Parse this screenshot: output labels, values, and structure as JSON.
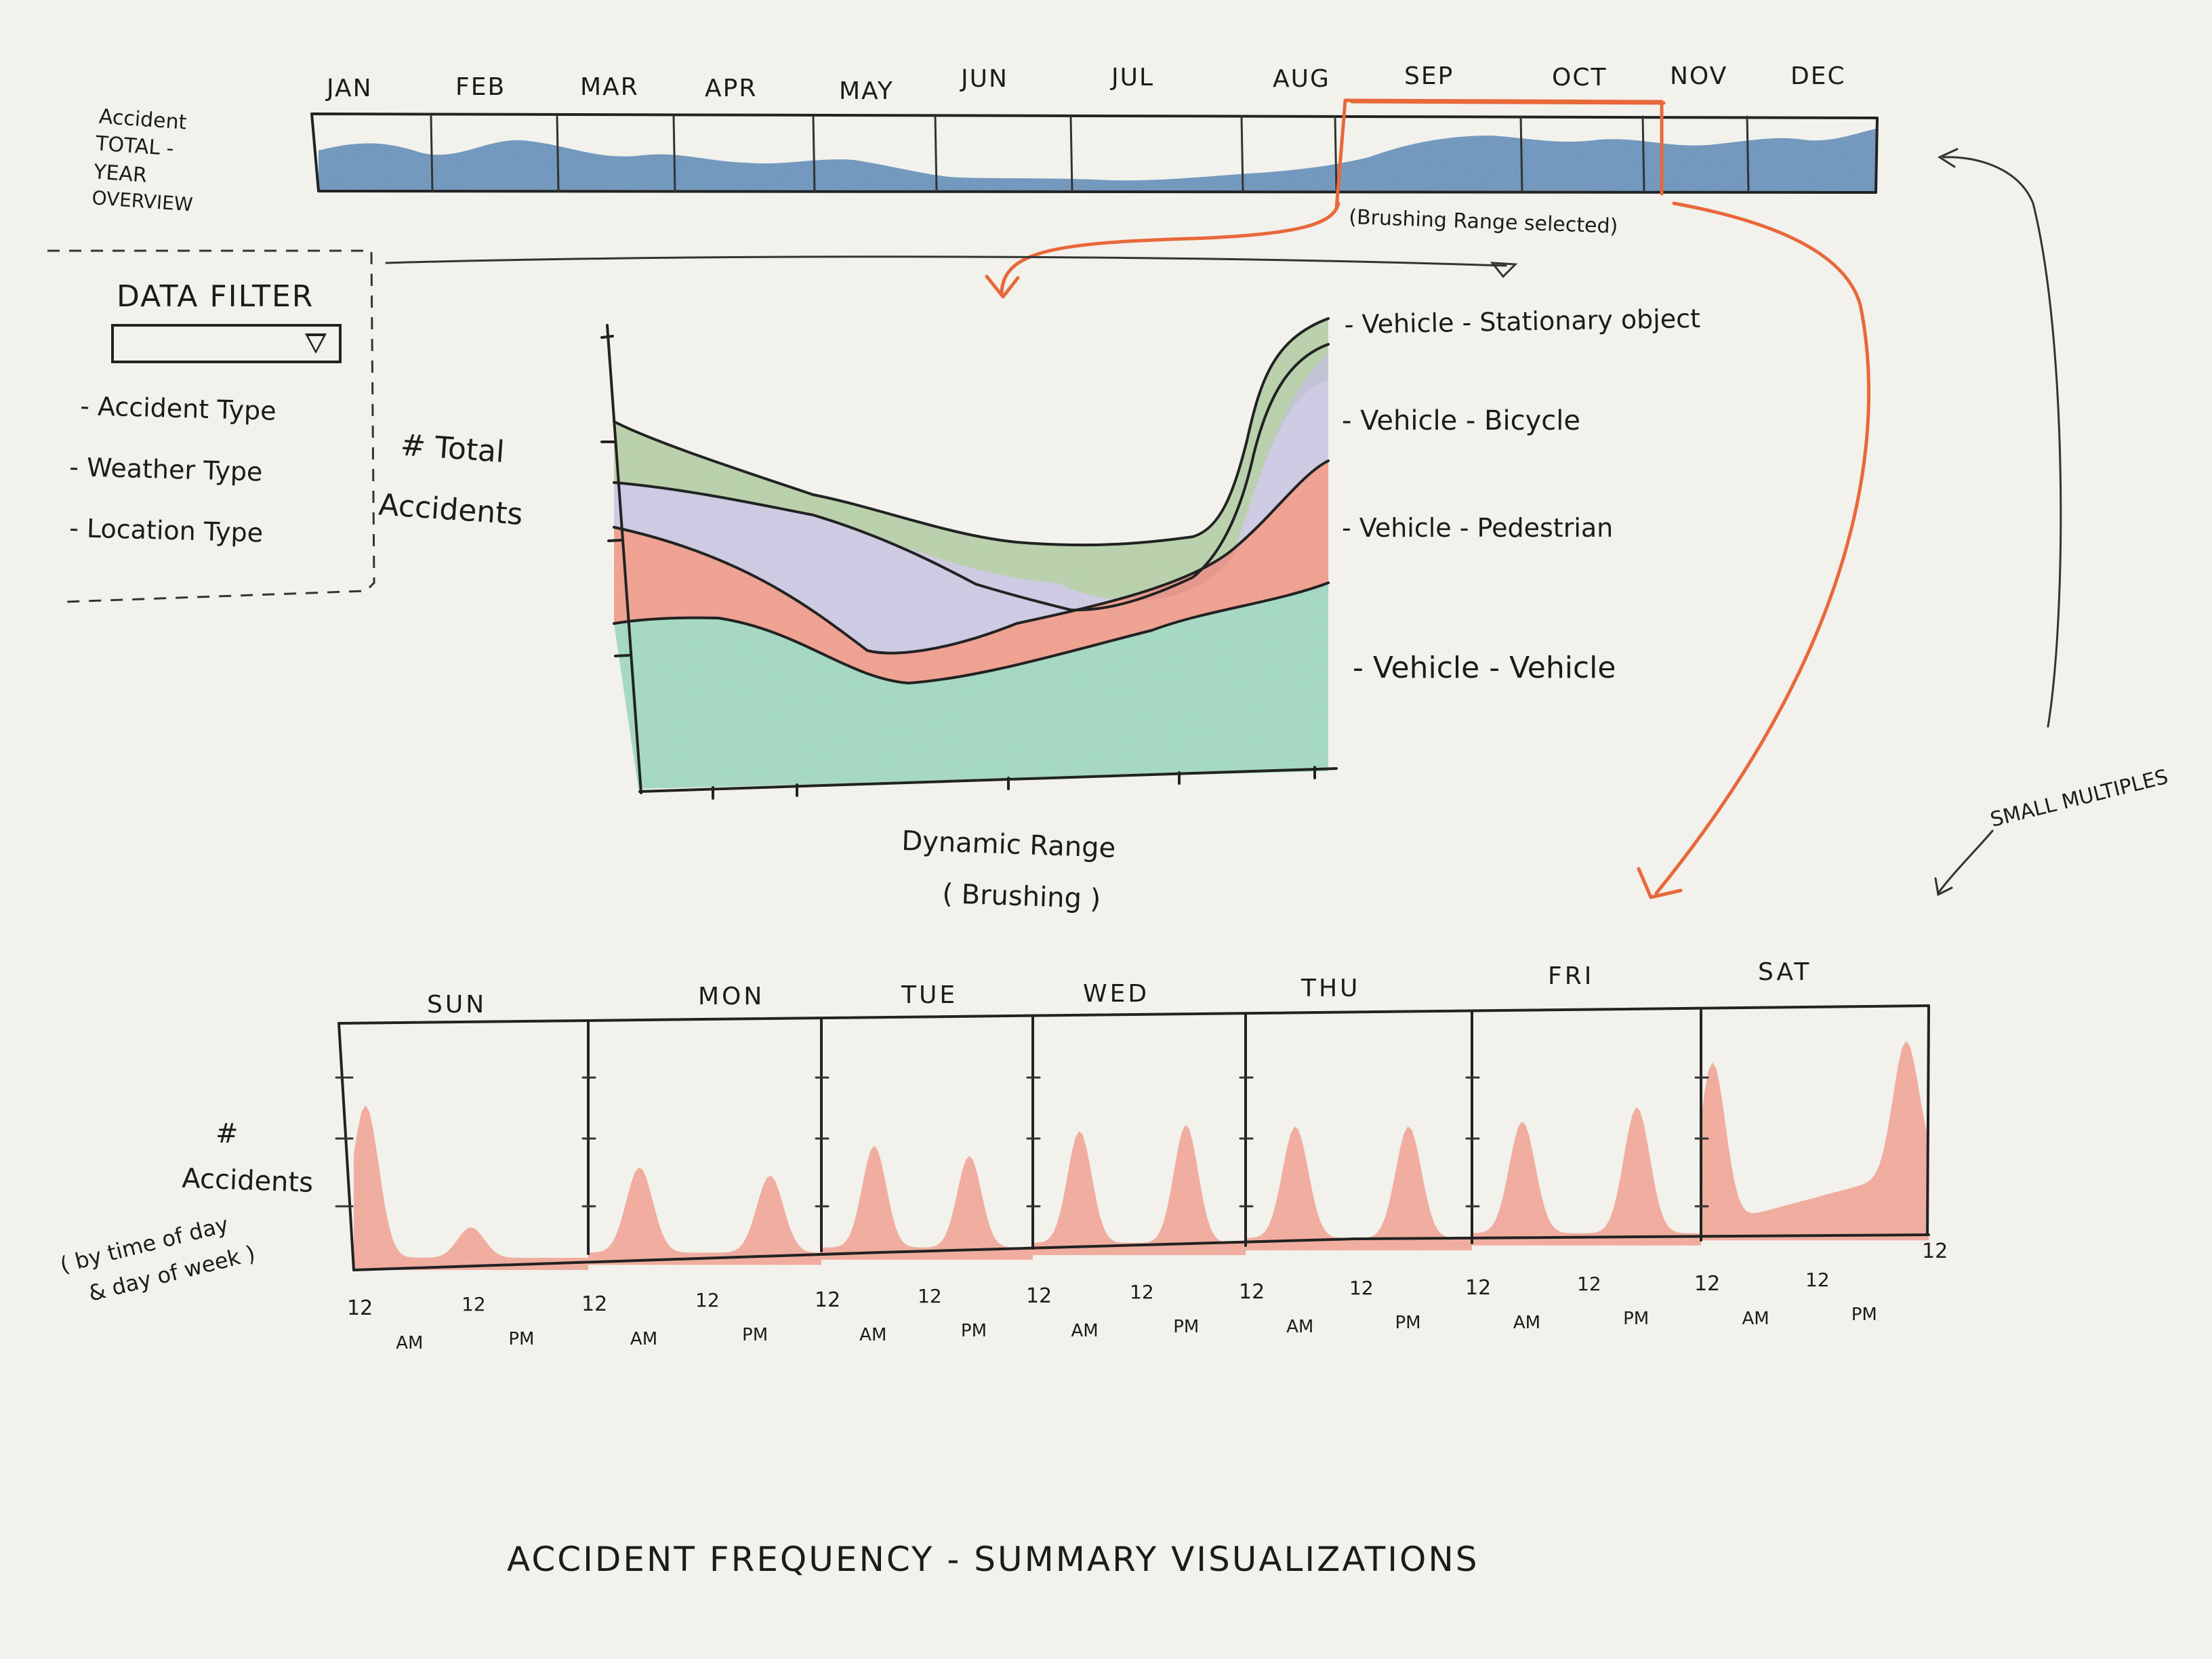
{
  "overview": {
    "label_lines": [
      "Accident",
      "TOTAL -",
      "YEAR",
      "OVERVIEW"
    ],
    "months": [
      "JAN",
      "FEB",
      "MAR",
      "APR",
      "MAY",
      "JUN",
      "JUL",
      "AUG",
      "SEP",
      "OCT",
      "NOV",
      "DEC"
    ],
    "brush_note": "(Brushing Range selected)",
    "fill_color": "#4f7fb0",
    "brush_color": "#e8683a"
  },
  "filter": {
    "title": "DATA FILTER",
    "options": [
      "- Accident Type",
      "- Weather Type",
      "- Location Type"
    ]
  },
  "main_chart": {
    "ylabel_lines": [
      "#  Total",
      "Accidents"
    ],
    "caption_lines": [
      "Dynamic Range",
      "( Brushing )"
    ],
    "series": [
      {
        "name": "- Vehicle - Stationary object",
        "color": "#a9c79a"
      },
      {
        "name": "- Vehicle - Bicycle",
        "color": "#c3bfe0"
      },
      {
        "name": "- Vehicle - Pedestrian",
        "color": "#ee8b78"
      },
      {
        "name": "- Vehicle - Vehicle",
        "color": "#8fd1b6"
      }
    ]
  },
  "small_multiples": {
    "label": "SMALL MULTIPLES",
    "ylabel_lines": [
      "#",
      "Accidents",
      "( by time of day",
      "& day of week )"
    ],
    "days": [
      "SUN",
      "MON",
      "TUE",
      "WED",
      "THU",
      "FRI",
      "SAT"
    ],
    "tick_12": "12",
    "am": "AM",
    "pm": "PM",
    "fill_color": "#ef8a78"
  },
  "title": "ACCIDENT FREQUENCY  -  SUMMARY VISUALIZATIONS"
}
